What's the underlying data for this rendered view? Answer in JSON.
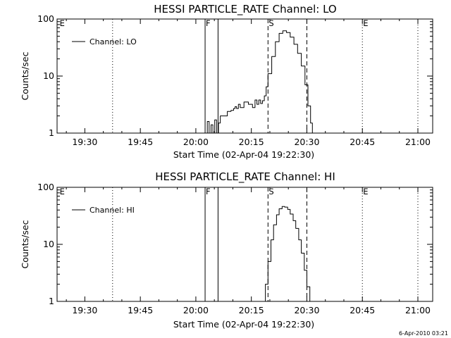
{
  "footer": {
    "timestamp": "6-Apr-2010 03:21"
  },
  "chart_data": [
    {
      "type": "line",
      "title": "HESSI PARTICLE_RATE Channel: LO",
      "xlabel": "Start Time (02-Apr-04 19:22:30)",
      "ylabel": "Counts/sec",
      "x_ticks": [
        "19:30",
        "19:45",
        "20:00",
        "20:15",
        "20:30",
        "20:45",
        "21:00"
      ],
      "x_tick_minutes": [
        1170,
        1185,
        1200,
        1215,
        1230,
        1245,
        1260
      ],
      "y_scale": "log",
      "y_ticks": [
        "1",
        "10",
        "100"
      ],
      "y_tick_values": [
        1,
        10,
        100
      ],
      "xlim_minutes": [
        1162.5,
        1264
      ],
      "ylim": [
        1,
        100
      ],
      "grid": false,
      "legend": {
        "position": "top-left",
        "label": "Channel: LO"
      },
      "markers": [
        {
          "label": "E",
          "minute": 1163,
          "style": "none"
        },
        {
          "label": "",
          "minute": 1177.5,
          "style": "dotted"
        },
        {
          "label": "F",
          "minute": 1202.5,
          "style": "solid"
        },
        {
          "label": "",
          "minute": 1206,
          "style": "solid"
        },
        {
          "label": "S",
          "minute": 1219.5,
          "style": "dashed"
        },
        {
          "label": "",
          "minute": 1230,
          "style": "dashed"
        },
        {
          "label": "E",
          "minute": 1245,
          "style": "dotted"
        },
        {
          "label": "",
          "minute": 1260,
          "style": "dotted"
        }
      ],
      "series": [
        {
          "name": "Channel: LO",
          "x_minutes": [
            1202.6,
            1203.1,
            1203.6,
            1204.1,
            1204.6,
            1205.1,
            1205.6,
            1206.1,
            1206.6,
            1207.1,
            1208.5,
            1209.5,
            1210.2,
            1210.6,
            1211.0,
            1211.5,
            1212.0,
            1213.0,
            1214.2,
            1215.3,
            1216.0,
            1216.5,
            1217.0,
            1217.5,
            1218.0,
            1218.5,
            1219.0,
            1219.5,
            1220.5,
            1221.5,
            1222.5,
            1223.5,
            1224.5,
            1225.5,
            1226.5,
            1227.5,
            1228.5,
            1229.5,
            1230.3,
            1231.0,
            1231.5
          ],
          "values": [
            1,
            1.6,
            1,
            1.4,
            1,
            1.7,
            1,
            1.5,
            2,
            2,
            2.4,
            2.5,
            2.7,
            2.9,
            2.7,
            3.2,
            2.8,
            3.5,
            3.2,
            2.8,
            3.8,
            3.2,
            3.8,
            3.3,
            3.7,
            4.5,
            6.5,
            11,
            22,
            40,
            56,
            62,
            58,
            48,
            36,
            25,
            15,
            7,
            3,
            1.5,
            1
          ]
        }
      ]
    },
    {
      "type": "line",
      "title": "HESSI PARTICLE_RATE Channel: HI",
      "xlabel": "Start Time (02-Apr-04 19:22:30)",
      "ylabel": "Counts/sec",
      "x_ticks": [
        "19:30",
        "19:45",
        "20:00",
        "20:15",
        "20:30",
        "20:45",
        "21:00"
      ],
      "x_tick_minutes": [
        1170,
        1185,
        1200,
        1215,
        1230,
        1245,
        1260
      ],
      "y_scale": "log",
      "y_ticks": [
        "1",
        "10",
        "100"
      ],
      "y_tick_values": [
        1,
        10,
        100
      ],
      "xlim_minutes": [
        1162.5,
        1264
      ],
      "ylim": [
        1,
        100
      ],
      "grid": false,
      "legend": {
        "position": "top-left",
        "label": "Channel: HI"
      },
      "markers": [
        {
          "label": "E",
          "minute": 1163,
          "style": "none"
        },
        {
          "label": "",
          "minute": 1177.5,
          "style": "dotted"
        },
        {
          "label": "F",
          "minute": 1202.5,
          "style": "solid"
        },
        {
          "label": "",
          "minute": 1206,
          "style": "solid"
        },
        {
          "label": "S",
          "minute": 1219.5,
          "style": "dashed"
        },
        {
          "label": "",
          "minute": 1230,
          "style": "dashed"
        },
        {
          "label": "E",
          "minute": 1245,
          "style": "dotted"
        },
        {
          "label": "",
          "minute": 1260,
          "style": "dotted"
        }
      ],
      "series": [
        {
          "name": "Channel: HI",
          "x_minutes": [
            1218.2,
            1218.8,
            1219.5,
            1220.3,
            1221.0,
            1221.8,
            1222.5,
            1223.3,
            1224.0,
            1224.8,
            1225.5,
            1226.3,
            1227.0,
            1227.8,
            1228.5,
            1229.3,
            1230.0,
            1230.8
          ],
          "values": [
            1,
            2,
            5,
            12,
            22,
            33,
            42,
            46,
            45,
            41,
            34,
            26,
            19,
            12,
            7,
            3.5,
            1.8,
            1
          ]
        }
      ]
    }
  ]
}
